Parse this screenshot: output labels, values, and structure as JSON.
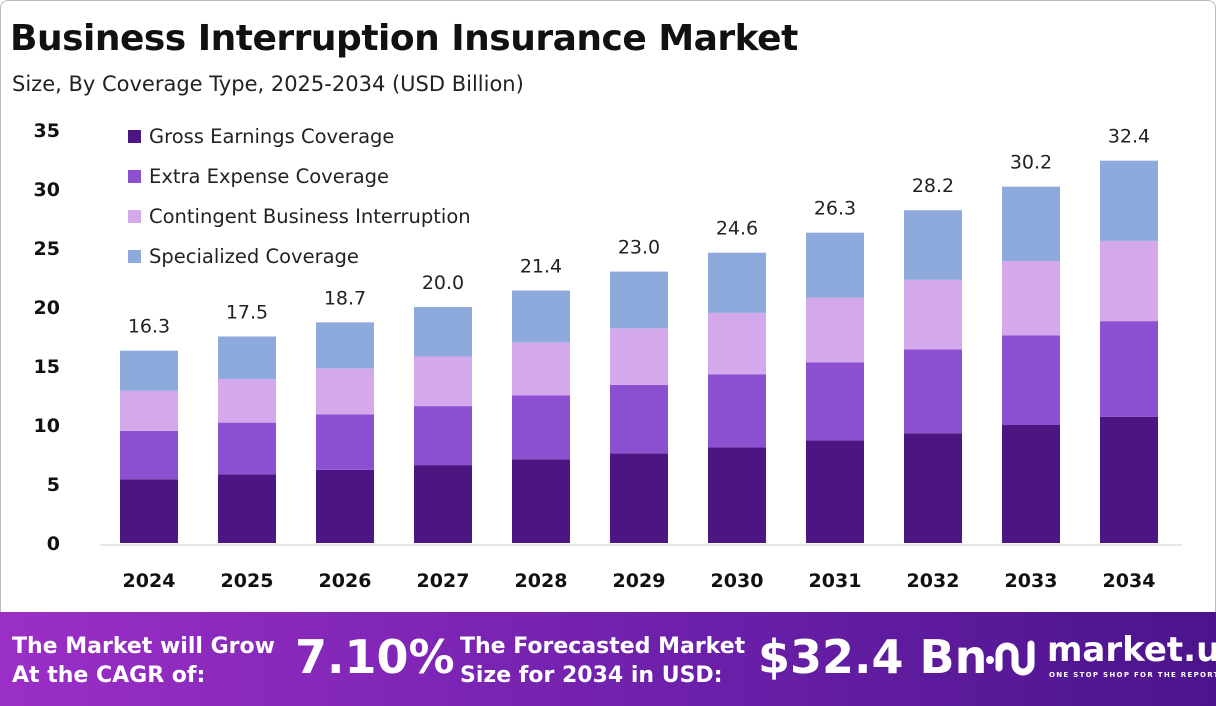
{
  "chart_data": {
    "type": "stacked-bar",
    "title": "Business Interruption Insurance Market",
    "subtitle": "Size, By Coverage Type, 2025-2034 (USD Billion)",
    "categories": [
      "2024",
      "2025",
      "2026",
      "2027",
      "2028",
      "2029",
      "2030",
      "2031",
      "2032",
      "2033",
      "2034"
    ],
    "totals": [
      "16.3",
      "17.5",
      "18.7",
      "20.0",
      "21.4",
      "23.0",
      "24.6",
      "26.3",
      "28.2",
      "30.2",
      "32.4"
    ],
    "series": [
      {
        "name": "Gross Earnings Coverage",
        "color": "#4b1582",
        "values": [
          5.4,
          5.8,
          6.2,
          6.6,
          7.1,
          7.6,
          8.1,
          8.7,
          9.3,
          10.0,
          10.7
        ]
      },
      {
        "name": "Extra Expense Coverage",
        "color": "#8b4fcf",
        "values": [
          4.1,
          4.4,
          4.7,
          5.0,
          5.4,
          5.8,
          6.2,
          6.6,
          7.1,
          7.6,
          8.1
        ]
      },
      {
        "name": "Contingent Business Interruption",
        "color": "#d3a9ec",
        "values": [
          3.4,
          3.7,
          3.9,
          4.2,
          4.5,
          4.8,
          5.2,
          5.5,
          5.9,
          6.3,
          6.8
        ]
      },
      {
        "name": "Specialized Coverage",
        "color": "#8eaadd",
        "values": [
          3.4,
          3.6,
          3.9,
          4.2,
          4.4,
          4.8,
          5.1,
          5.5,
          5.9,
          6.3,
          6.8
        ]
      }
    ],
    "yticks": [
      "0",
      "5",
      "10",
      "15",
      "20",
      "25",
      "30",
      "35"
    ],
    "ylim": [
      0,
      35
    ],
    "grid": false,
    "legend": "top-left"
  },
  "footer": {
    "cagr_label": "The Market will Grow At the CAGR of:",
    "cagr_value": "7.10%",
    "forecast_label": "The Forecasted Market Size for 2034 in USD:",
    "forecast_value": "$32.4 Bn",
    "logo": "market.us",
    "logo_tagline": "ONE STOP SHOP FOR THE REPORTS"
  }
}
